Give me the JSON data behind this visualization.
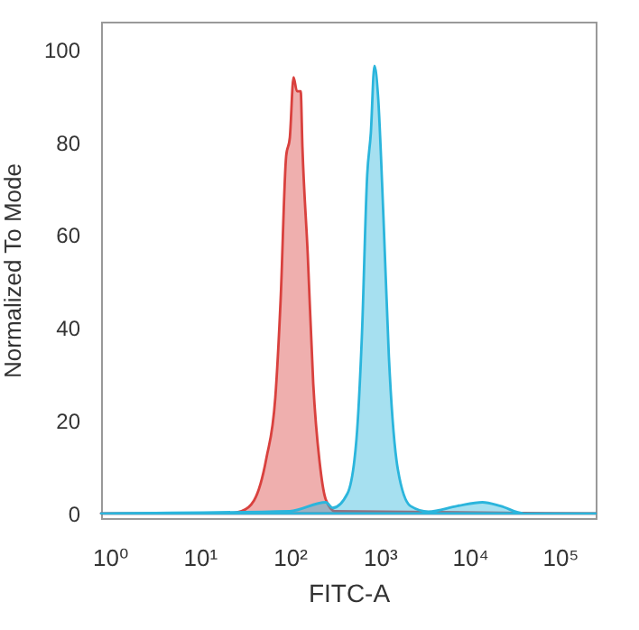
{
  "chart_data": {
    "type": "area",
    "xlabel": "FITC-A",
    "ylabel": "Normalized To Mode",
    "log": "x",
    "grid": false,
    "xlim": [
      0.8,
      250000
    ],
    "ylim": [
      -1,
      106
    ],
    "xticks": [
      {
        "value": 1,
        "label": "10⁰"
      },
      {
        "value": 10,
        "label": "10¹"
      },
      {
        "value": 100,
        "label": "10²"
      },
      {
        "value": 1000,
        "label": "10³"
      },
      {
        "value": 10000,
        "label": "10⁴"
      },
      {
        "value": 100000,
        "label": "10⁵"
      }
    ],
    "yticks": [
      0,
      20,
      40,
      60,
      80,
      100
    ],
    "series": [
      {
        "color": "#d9413e",
        "x": [
          0.8,
          20,
          29,
          40,
          55,
          69,
          79,
          91,
          100,
          110,
          120,
          132,
          138,
          158,
          182,
          219,
          251,
          316,
          250000
        ],
        "values": [
          0,
          0,
          0.5,
          2.8,
          12,
          25,
          46,
          77,
          81,
          94,
          91,
          91,
          79,
          56,
          28,
          9.5,
          3,
          0.5,
          0
        ]
      },
      {
        "color": "#2bb5dc",
        "x": [
          0.8,
          100,
          251,
          300,
          437,
          550,
          631,
          724,
          794,
          871,
          955,
          1096,
          1259,
          1585,
          2188,
          3467,
          7244,
          13800,
          21900,
          39800,
          250000
        ],
        "values": [
          0,
          0.5,
          2.4,
          1.2,
          4.3,
          16,
          38,
          73,
          82,
          96.5,
          90,
          64,
          34,
          9.5,
          1.6,
          0.4,
          1.6,
          2.4,
          1.6,
          0,
          0
        ]
      }
    ]
  }
}
